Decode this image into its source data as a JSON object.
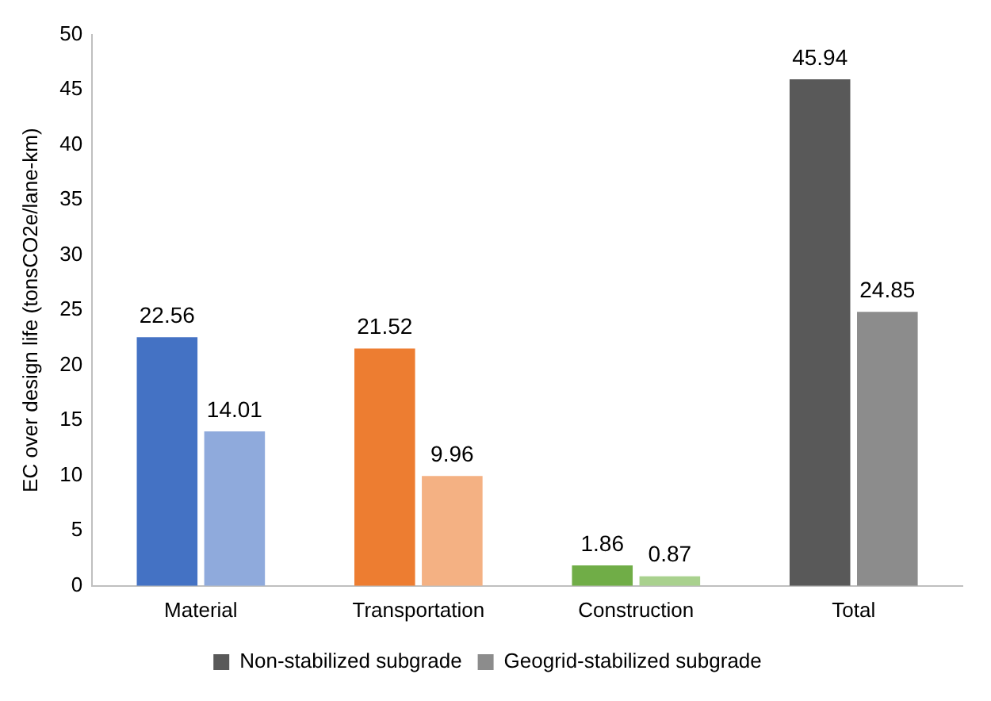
{
  "chart_data": {
    "type": "bar",
    "ylabel": "EC over design life (tonsCO2e/lane-km)",
    "categories": [
      "Material",
      "Transportation",
      "Construction",
      "Total"
    ],
    "series": [
      {
        "name": "Non-stabilized subgrade",
        "color": "#595959",
        "colors": [
          "#4472c4",
          "#ed7d31",
          "#70ad47",
          "#595959"
        ],
        "values": [
          22.56,
          21.52,
          1.86,
          45.94
        ]
      },
      {
        "name": "Geogrid-stabilized subgrade",
        "color": "#8c8c8c",
        "colors": [
          "#8faadc",
          "#f4b183",
          "#a9d18e",
          "#8c8c8c"
        ],
        "values": [
          14.01,
          9.96,
          0.87,
          24.85
        ]
      }
    ],
    "ylim": [
      0,
      50
    ],
    "yticks": [
      0,
      5,
      10,
      15,
      20,
      25,
      30,
      35,
      40,
      45,
      50
    ],
    "grid": false,
    "legend": "bottom",
    "data_labels": true
  }
}
